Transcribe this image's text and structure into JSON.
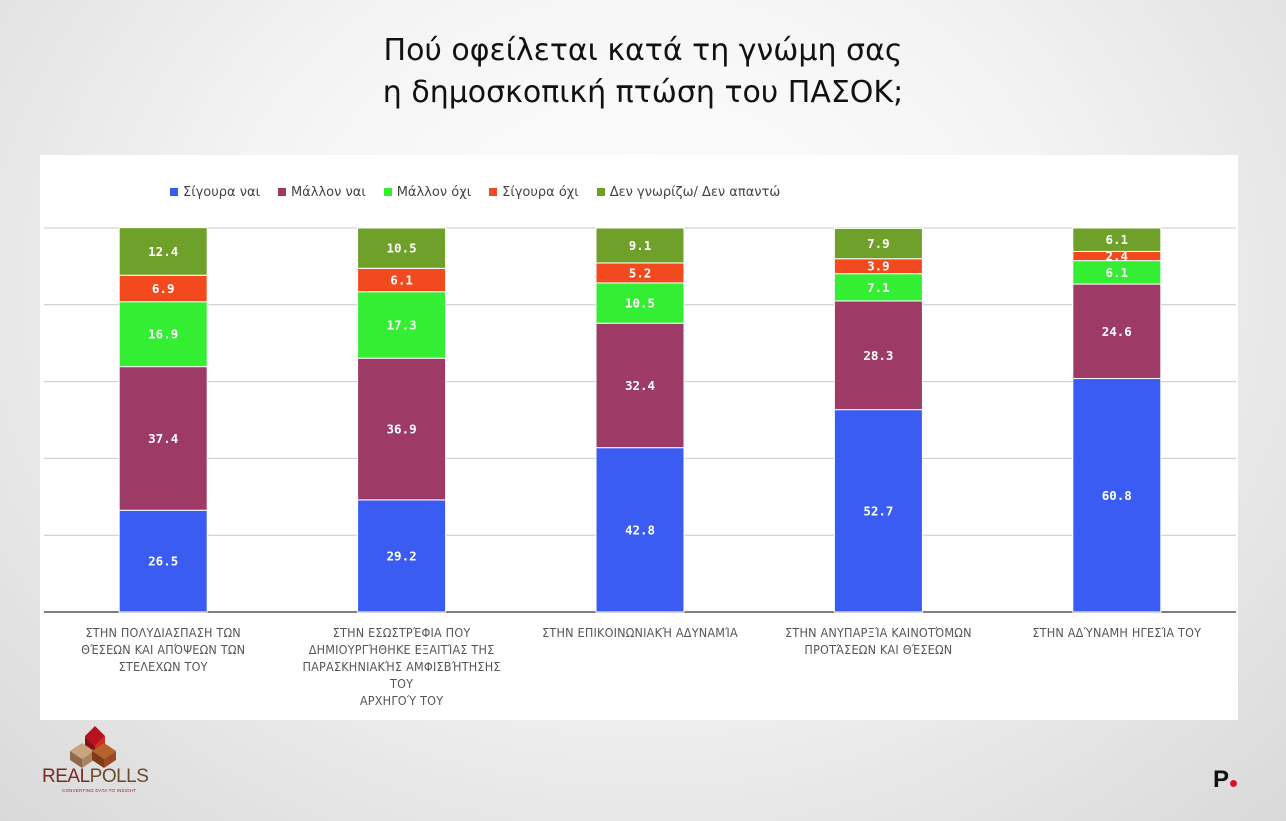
{
  "title_line1": "Πού οφείλεται κατά τη γνώμη σας",
  "title_line2": "η δημοσκοπική πτώση του ΠΑΣΟΚ;",
  "colors": {
    "Σίγουρα ναι": "#3a5cf2",
    "Μάλλον ναι": "#9e3a66",
    "Μάλλον όχι": "#33ee33",
    "Σίγουρα όχι": "#f24a1e",
    "Δεν γνωρίζω/ Δεν απαντώ": "#6ea02a"
  },
  "chart_data": {
    "type": "bar",
    "stacked": true,
    "categories": [
      "ΣΤΗΝ ΠΟΛΥΔΙΑΣΠΑΣΗ ΤΩΝ ΘΈΣΕΩΝ ΚΑΙ ΑΠΌΨΕΩΝ ΤΩΝ ΣΤΕΛΕΧΩΝ ΤΟΥ",
      "ΣΤΗΝ ΕΣΩΣΤΡΈΦΙΑ ΠΟΥ ΔΗΜΙΟΥΡΓΉΘΗΚΕ ΕΞΑΙΤΊΑΣ ΤΗΣ ΠΑΡΑΣΚΗΝΙΑΚΉΣ ΑΜΦΙΣΒΉΤΗΣΗΣ ΤΟΥ ΑΡΧΗΓΟΎ ΤΟΥ",
      "ΣΤΗΝ ΕΠΙΚΟΙΝΩΝΙΑΚΉ ΑΔΥΝΑΜΊΑ",
      "ΣΤΗΝ ΑΝΥΠΑΡΞΊΑ ΚΑΙΝΟΤΌΜΩΝ ΠΡΟΤΆΣΕΩΝ ΚΑΙ ΘΈΣΕΩΝ",
      "ΣΤΗΝ ΑΔΎΝΑΜΗ ΗΓΕΣΊΑ ΤΟΥ"
    ],
    "category_lines": [
      [
        "ΣΤΗΝ ΠΟΛΥΔΙΑΣΠΑΣΗ ΤΩΝ",
        "ΘΈΣΕΩΝ ΚΑΙ ΑΠΌΨΕΩΝ ΤΩΝ",
        "ΣΤΕΛΕΧΩΝ ΤΟΥ"
      ],
      [
        "ΣΤΗΝ ΕΣΩΣΤΡΈΦΙΑ ΠΟΥ",
        "ΔΗΜΙΟΥΡΓΉΘΗΚΕ ΕΞΑΙΤΊΑΣ ΤΗΣ",
        "ΠΑΡΑΣΚΗΝΙΑΚΉΣ ΑΜΦΙΣΒΉΤΗΣΗΣ",
        "ΤΟΥ",
        "ΑΡΧΗΓΟΎ ΤΟΥ"
      ],
      [
        "ΣΤΗΝ ΕΠΙΚΟΙΝΩΝΙΑΚΉ ΑΔΥΝΑΜΊΑ"
      ],
      [
        "ΣΤΗΝ ΑΝΥΠΑΡΞΊΑ ΚΑΙΝΟΤΌΜΩΝ",
        "ΠΡΟΤΆΣΕΩΝ ΚΑΙ ΘΈΣΕΩΝ"
      ],
      [
        "ΣΤΗΝ ΑΔΎΝΑΜΗ ΗΓΕΣΊΑ ΤΟΥ"
      ]
    ],
    "series": [
      {
        "name": "Σίγουρα ναι",
        "values": [
          26.5,
          29.2,
          42.8,
          52.7,
          60.8
        ]
      },
      {
        "name": "Μάλλον ναι",
        "values": [
          37.4,
          36.9,
          32.4,
          28.3,
          24.6
        ]
      },
      {
        "name": "Μάλλον όχι",
        "values": [
          16.9,
          17.3,
          10.5,
          7.1,
          6.1
        ]
      },
      {
        "name": "Σίγουρα όχι",
        "values": [
          6.9,
          6.1,
          5.2,
          3.9,
          2.4
        ]
      },
      {
        "name": "Δεν γνωρίζω/ Δεν απαντώ",
        "values": [
          12.4,
          10.5,
          9.1,
          7.9,
          6.1
        ]
      }
    ],
    "ylim": [
      0,
      100
    ],
    "grid": true,
    "legend_position": "top-left",
    "data_labels": true
  },
  "logos": {
    "left_word_a": "REAL",
    "left_word_b": "POLLS",
    "left_tagline": "CONVERTING DATA TO INSIGHT",
    "right_mark": "P"
  }
}
